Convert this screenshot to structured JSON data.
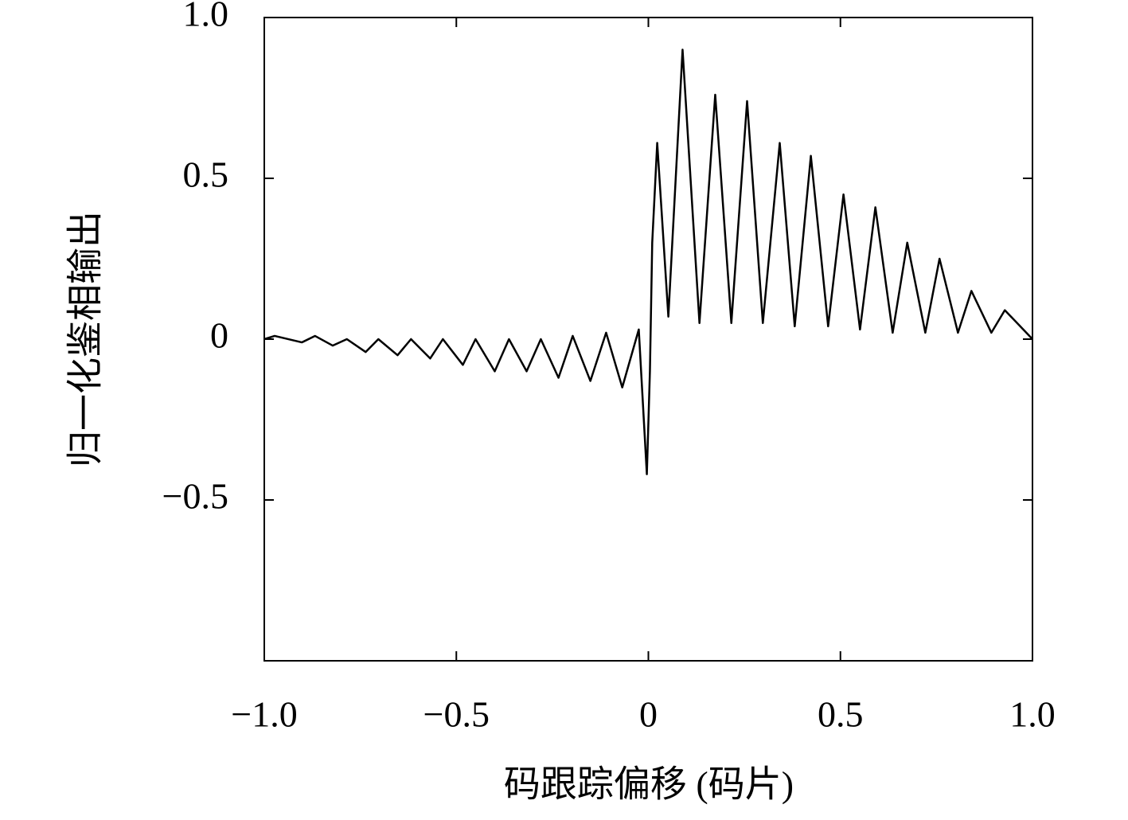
{
  "chart_data": {
    "type": "line",
    "xlabel": "码跟踪偏移 (码片)",
    "ylabel": "归一化鉴相输出",
    "xlim": [
      -1,
      1
    ],
    "ylim": [
      -1,
      1
    ],
    "xticks": [
      {
        "value": -1,
        "label": "−1.0"
      },
      {
        "value": -0.5,
        "label": "−0.5"
      },
      0,
      0.5,
      {
        "value": 1,
        "label": "1.0"
      }
    ],
    "yticks": [
      {
        "value": -0.5,
        "label": "−0.5"
      },
      0,
      0.5,
      {
        "value": 1,
        "label": "1.0"
      }
    ],
    "grid": false,
    "series": [
      {
        "color": "#000000",
        "x": [
          -1.0,
          -0.973,
          -0.902,
          -0.868,
          -0.822,
          -0.785,
          -0.736,
          -0.703,
          -0.653,
          -0.618,
          -0.568,
          -0.535,
          -0.483,
          -0.45,
          -0.4,
          -0.363,
          -0.317,
          -0.28,
          -0.234,
          -0.197,
          -0.151,
          -0.11,
          -0.068,
          -0.025,
          -0.004,
          0.004,
          0.01,
          0.023,
          0.052,
          0.089,
          0.133,
          0.174,
          0.216,
          0.257,
          0.298,
          0.342,
          0.381,
          0.423,
          0.468,
          0.508,
          0.551,
          0.591,
          0.636,
          0.674,
          0.721,
          0.758,
          0.806,
          0.841,
          0.893,
          0.928,
          0.984,
          1.0
        ],
        "values": [
          0.0,
          0.01,
          -0.01,
          0.01,
          -0.02,
          0.0,
          -0.04,
          0.0,
          -0.05,
          0.0,
          -0.06,
          0.0,
          -0.08,
          0.0,
          -0.1,
          0.0,
          -0.1,
          0.0,
          -0.12,
          0.01,
          -0.13,
          0.02,
          -0.15,
          0.03,
          -0.42,
          -0.1,
          0.3,
          0.61,
          0.07,
          0.9,
          0.05,
          0.76,
          0.05,
          0.74,
          0.05,
          0.61,
          0.04,
          0.57,
          0.04,
          0.45,
          0.03,
          0.41,
          0.02,
          0.3,
          0.02,
          0.25,
          0.02,
          0.15,
          0.02,
          0.09,
          0.02,
          0.0
        ]
      }
    ]
  }
}
